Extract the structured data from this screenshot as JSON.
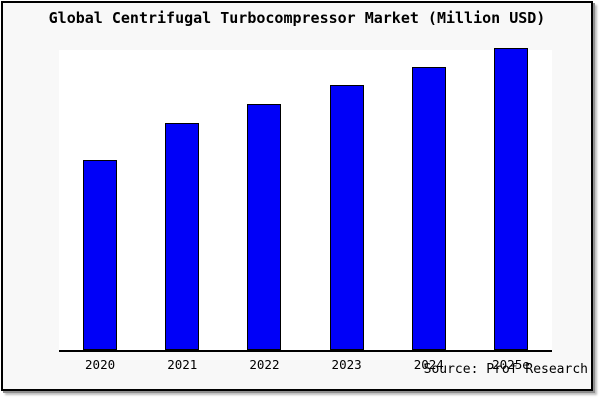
{
  "title": "Global Centrifugal Turbocompressor Market (Million USD)",
  "source_credit": "Source: Prof Research",
  "colors": {
    "canvas_background": "#f8f8f8",
    "plot_background": "#ffffff",
    "bar_fill": "#0000f8",
    "bar_edge": "#000000",
    "frame_border": "#000000",
    "frame_shadow": "#8f8f8f",
    "text": "#000000"
  },
  "chart_data": {
    "type": "bar",
    "title": "Global Centrifugal Turbocompressor Market (Million USD)",
    "categories": [
      "2020",
      "2021",
      "2022",
      "2023",
      "2024",
      "2025e"
    ],
    "values": [
      62.8,
      75.1,
      81.4,
      87.7,
      93.7,
      100
    ],
    "values_unit": "percent of tallest bar (no numeric y-axis labels shown in image)",
    "xlabel": "",
    "ylabel": "",
    "ylim": [
      0,
      100
    ],
    "grid": false,
    "legend": false,
    "y_axis_ticks_visible": false,
    "bar_color": "#0000f8",
    "bar_edge_color": "#000000"
  }
}
